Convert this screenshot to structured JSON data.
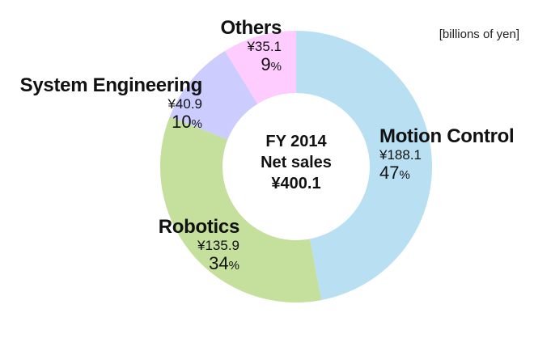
{
  "chart_data": {
    "type": "pie",
    "variant": "donut",
    "title": "FY 2014 Net sales",
    "center_text": [
      "FY 2014",
      "Net sales",
      "¥400.1"
    ],
    "unit_note": "[billions of yen]",
    "total": 400.1,
    "currency_symbol": "¥",
    "slices": [
      {
        "name": "Motion Control",
        "value": 188.1,
        "value_label": "¥188.1",
        "percent": 47,
        "color": "#b8dff2"
      },
      {
        "name": "Robotics",
        "value": 135.9,
        "value_label": "¥135.9",
        "percent": 34,
        "color": "#c5df9d"
      },
      {
        "name": "System Engineering",
        "value": 40.9,
        "value_label": "¥40.9",
        "percent": 10,
        "color": "#ccccff"
      },
      {
        "name": "Others",
        "value": 35.1,
        "value_label": "¥35.1",
        "percent": 9,
        "color": "#ffccff"
      }
    ],
    "start_angle": "12 o'clock",
    "direction": "clockwise",
    "legend": "none (direct labels)"
  },
  "percent_sign": "%"
}
